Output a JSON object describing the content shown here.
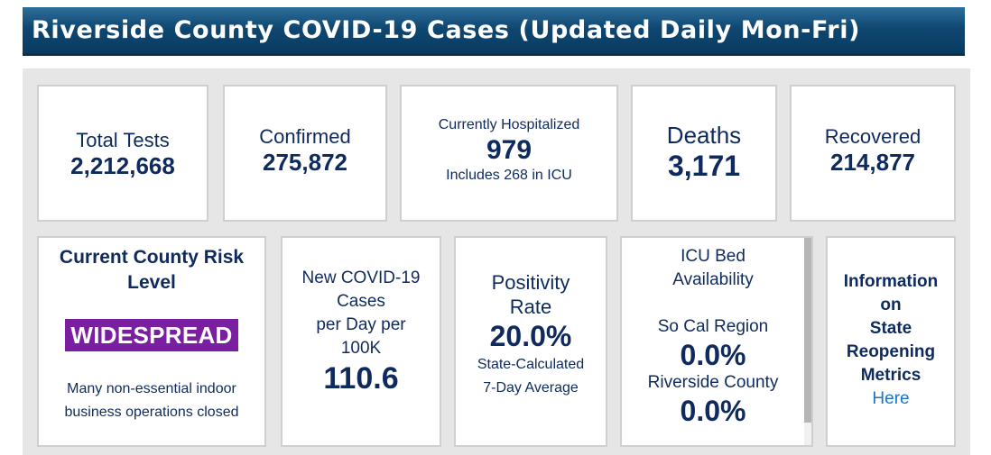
{
  "header": {
    "title": "Riverside County COVID-19 Cases (Updated Daily Mon-Fri)"
  },
  "stats": {
    "total_tests": {
      "label": "Total Tests",
      "value": "2,212,668"
    },
    "confirmed": {
      "label": "Confirmed",
      "value": "275,872"
    },
    "hospitalized": {
      "label": "Currently Hospitalized",
      "value": "979",
      "note": "Includes 268 in ICU"
    },
    "deaths": {
      "label": "Deaths",
      "value": "3,171"
    },
    "recovered": {
      "label": "Recovered",
      "value": "214,877"
    }
  },
  "risk": {
    "title_line1": "Current County Risk",
    "title_line2": "Level",
    "badge": "WIDESPREAD",
    "note_line1": "Many non-essential indoor",
    "note_line2": "business operations closed",
    "badge_color": "#7b1fa2"
  },
  "new_cases": {
    "line1": "New COVID-19",
    "line2": "Cases",
    "line3": "per Day per",
    "line4": "100K",
    "value": "110.6"
  },
  "positivity": {
    "line1": "Positivity",
    "line2": "Rate",
    "value": "20.0%",
    "note_line1": "State-Calculated",
    "note_line2": "7-Day Average"
  },
  "icu": {
    "title_line1": "ICU Bed",
    "title_line2": "Availability",
    "region_label": "So Cal Region",
    "region_value": "0.0%",
    "county_label": "Riverside County",
    "county_value": "0.0%"
  },
  "info": {
    "line1": "Information",
    "line2": "on",
    "line3": "State",
    "line4": "Reopening",
    "line5": "Metrics",
    "link": "Here"
  }
}
